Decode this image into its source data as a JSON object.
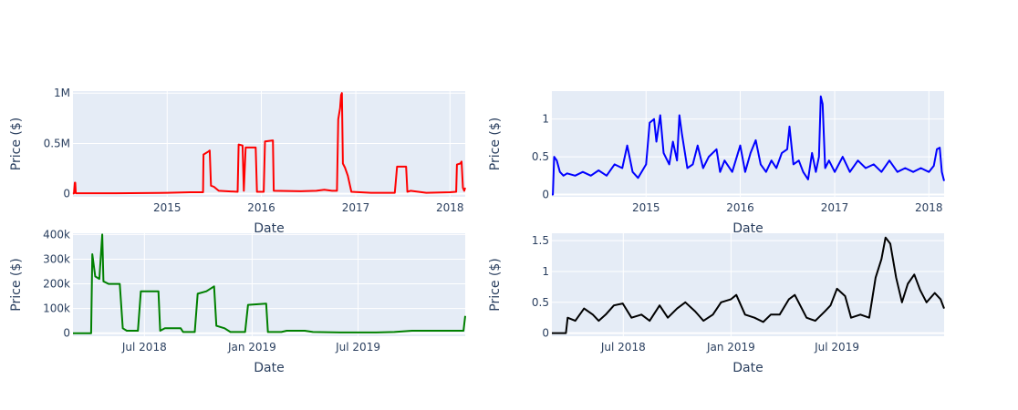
{
  "chart_data": [
    {
      "type": "line",
      "color": "#ff0000",
      "xlabel": "Date",
      "ylabel": "Price ($)",
      "x_range": [
        "2014-01-01",
        "2018-03-01"
      ],
      "ylim": [
        -30000,
        1020000
      ],
      "x_ticks": [
        {
          "value": "2015-01-01",
          "label": "2015"
        },
        {
          "value": "2016-01-01",
          "label": "2016"
        },
        {
          "value": "2017-01-01",
          "label": "2017"
        },
        {
          "value": "2018-01-01",
          "label": "2018"
        }
      ],
      "y_ticks": [
        {
          "value": 0,
          "label": "0"
        },
        {
          "value": 500000,
          "label": "0.5M"
        },
        {
          "value": 1000000,
          "label": "1M"
        }
      ],
      "points": [
        [
          "2014-01-01",
          0
        ],
        [
          "2014-01-05",
          5000
        ],
        [
          "2014-01-08",
          110000
        ],
        [
          "2014-01-10",
          110000
        ],
        [
          "2014-01-12",
          5000
        ],
        [
          "2014-06-01",
          5000
        ],
        [
          "2014-12-01",
          8000
        ],
        [
          "2015-01-01",
          10000
        ],
        [
          "2015-04-01",
          15000
        ],
        [
          "2015-05-20",
          15000
        ],
        [
          "2015-05-22",
          390000
        ],
        [
          "2015-06-10",
          420000
        ],
        [
          "2015-06-15",
          430000
        ],
        [
          "2015-06-20",
          80000
        ],
        [
          "2015-07-01",
          70000
        ],
        [
          "2015-07-20",
          30000
        ],
        [
          "2015-10-01",
          20000
        ],
        [
          "2015-10-05",
          490000
        ],
        [
          "2015-10-20",
          480000
        ],
        [
          "2015-10-25",
          30000
        ],
        [
          "2015-11-01",
          460000
        ],
        [
          "2015-12-10",
          460000
        ],
        [
          "2015-12-15",
          20000
        ],
        [
          "2016-01-10",
          20000
        ],
        [
          "2016-01-15",
          520000
        ],
        [
          "2016-02-15",
          530000
        ],
        [
          "2016-02-18",
          30000
        ],
        [
          "2016-06-01",
          25000
        ],
        [
          "2016-08-01",
          30000
        ],
        [
          "2016-09-01",
          40000
        ],
        [
          "2016-10-01",
          30000
        ],
        [
          "2016-10-20",
          30000
        ],
        [
          "2016-10-25",
          740000
        ],
        [
          "2016-11-01",
          850000
        ],
        [
          "2016-11-05",
          980000
        ],
        [
          "2016-11-08",
          1000000
        ],
        [
          "2016-11-12",
          300000
        ],
        [
          "2016-11-20",
          260000
        ],
        [
          "2016-12-01",
          180000
        ],
        [
          "2016-12-15",
          20000
        ],
        [
          "2017-03-01",
          10000
        ],
        [
          "2017-06-01",
          10000
        ],
        [
          "2017-06-10",
          270000
        ],
        [
          "2017-07-15",
          270000
        ],
        [
          "2017-07-20",
          20000
        ],
        [
          "2017-08-01",
          30000
        ],
        [
          "2017-10-01",
          10000
        ],
        [
          "2018-01-01",
          15000
        ],
        [
          "2018-01-25",
          20000
        ],
        [
          "2018-01-28",
          290000
        ],
        [
          "2018-02-10",
          300000
        ],
        [
          "2018-02-15",
          320000
        ],
        [
          "2018-02-20",
          60000
        ],
        [
          "2018-02-25",
          30000
        ],
        [
          "2018-03-01",
          60000
        ]
      ]
    },
    {
      "type": "line",
      "color": "#0000ff",
      "xlabel": "Date",
      "ylabel": "Price ($)",
      "x_range": [
        "2014-01-01",
        "2018-03-01"
      ],
      "ylim": [
        -0.03,
        1.37
      ],
      "x_ticks": [
        {
          "value": "2015-01-01",
          "label": "2015"
        },
        {
          "value": "2016-01-01",
          "label": "2016"
        },
        {
          "value": "2017-01-01",
          "label": "2017"
        },
        {
          "value": "2018-01-01",
          "label": "2018"
        }
      ],
      "y_ticks": [
        {
          "value": 0,
          "label": "0"
        },
        {
          "value": 0.5,
          "label": "0.5"
        },
        {
          "value": 1,
          "label": "1"
        }
      ],
      "points": [
        [
          "2014-01-01",
          0
        ],
        [
          "2014-01-05",
          0
        ],
        [
          "2014-01-10",
          0.5
        ],
        [
          "2014-01-20",
          0.45
        ],
        [
          "2014-02-01",
          0.3
        ],
        [
          "2014-02-15",
          0.25
        ],
        [
          "2014-03-01",
          0.28
        ],
        [
          "2014-04-01",
          0.25
        ],
        [
          "2014-05-01",
          0.3
        ],
        [
          "2014-06-01",
          0.25
        ],
        [
          "2014-07-01",
          0.32
        ],
        [
          "2014-08-01",
          0.25
        ],
        [
          "2014-09-01",
          0.4
        ],
        [
          "2014-10-01",
          0.35
        ],
        [
          "2014-10-20",
          0.65
        ],
        [
          "2014-11-10",
          0.3
        ],
        [
          "2014-12-01",
          0.22
        ],
        [
          "2015-01-01",
          0.4
        ],
        [
          "2015-01-15",
          0.95
        ],
        [
          "2015-02-01",
          1.0
        ],
        [
          "2015-02-10",
          0.7
        ],
        [
          "2015-02-25",
          1.05
        ],
        [
          "2015-03-10",
          0.55
        ],
        [
          "2015-04-01",
          0.4
        ],
        [
          "2015-04-15",
          0.7
        ],
        [
          "2015-05-01",
          0.45
        ],
        [
          "2015-05-10",
          1.05
        ],
        [
          "2015-05-20",
          0.8
        ],
        [
          "2015-06-10",
          0.35
        ],
        [
          "2015-07-01",
          0.4
        ],
        [
          "2015-07-20",
          0.65
        ],
        [
          "2015-08-10",
          0.35
        ],
        [
          "2015-09-01",
          0.5
        ],
        [
          "2015-10-01",
          0.6
        ],
        [
          "2015-10-15",
          0.3
        ],
        [
          "2015-11-01",
          0.45
        ],
        [
          "2015-12-01",
          0.3
        ],
        [
          "2016-01-01",
          0.65
        ],
        [
          "2016-01-20",
          0.3
        ],
        [
          "2016-02-10",
          0.55
        ],
        [
          "2016-03-01",
          0.72
        ],
        [
          "2016-03-20",
          0.4
        ],
        [
          "2016-04-10",
          0.3
        ],
        [
          "2016-05-01",
          0.45
        ],
        [
          "2016-05-20",
          0.35
        ],
        [
          "2016-06-10",
          0.55
        ],
        [
          "2016-07-01",
          0.6
        ],
        [
          "2016-07-10",
          0.9
        ],
        [
          "2016-07-25",
          0.4
        ],
        [
          "2016-08-15",
          0.45
        ],
        [
          "2016-09-01",
          0.3
        ],
        [
          "2016-09-20",
          0.2
        ],
        [
          "2016-10-05",
          0.55
        ],
        [
          "2016-10-20",
          0.3
        ],
        [
          "2016-11-01",
          0.5
        ],
        [
          "2016-11-08",
          1.3
        ],
        [
          "2016-11-15",
          1.2
        ],
        [
          "2016-11-25",
          0.35
        ],
        [
          "2016-12-10",
          0.45
        ],
        [
          "2017-01-01",
          0.3
        ],
        [
          "2017-02-01",
          0.5
        ],
        [
          "2017-03-01",
          0.3
        ],
        [
          "2017-04-01",
          0.45
        ],
        [
          "2017-05-01",
          0.35
        ],
        [
          "2017-06-01",
          0.4
        ],
        [
          "2017-07-01",
          0.3
        ],
        [
          "2017-08-01",
          0.45
        ],
        [
          "2017-09-01",
          0.3
        ],
        [
          "2017-10-01",
          0.35
        ],
        [
          "2017-11-01",
          0.3
        ],
        [
          "2017-12-01",
          0.35
        ],
        [
          "2018-01-01",
          0.3
        ],
        [
          "2018-01-20",
          0.38
        ],
        [
          "2018-02-01",
          0.6
        ],
        [
          "2018-02-12",
          0.62
        ],
        [
          "2018-02-20",
          0.3
        ],
        [
          "2018-03-01",
          0.18
        ]
      ]
    },
    {
      "type": "line",
      "color": "#008000",
      "xlabel": "Date",
      "ylabel": "Price ($)",
      "x_range": [
        "2018-03-01",
        "2019-12-31"
      ],
      "ylim": [
        -12000,
        405000
      ],
      "x_ticks": [
        {
          "value": "2018-07-01",
          "label": "Jul 2018"
        },
        {
          "value": "2019-01-01",
          "label": "Jan 2019"
        },
        {
          "value": "2019-07-01",
          "label": "Jul 2019"
        }
      ],
      "y_ticks": [
        {
          "value": 0,
          "label": "0"
        },
        {
          "value": 100000,
          "label": "100k"
        },
        {
          "value": 200000,
          "label": "200k"
        },
        {
          "value": 300000,
          "label": "300k"
        },
        {
          "value": 400000,
          "label": "400k"
        }
      ],
      "points": [
        [
          "2018-03-01",
          0
        ],
        [
          "2018-04-01",
          0
        ],
        [
          "2018-04-03",
          320000
        ],
        [
          "2018-04-08",
          230000
        ],
        [
          "2018-04-15",
          220000
        ],
        [
          "2018-04-20",
          400000
        ],
        [
          "2018-04-22",
          210000
        ],
        [
          "2018-05-01",
          200000
        ],
        [
          "2018-05-20",
          200000
        ],
        [
          "2018-05-25",
          20000
        ],
        [
          "2018-06-01",
          10000
        ],
        [
          "2018-06-20",
          10000
        ],
        [
          "2018-06-25",
          170000
        ],
        [
          "2018-07-25",
          170000
        ],
        [
          "2018-07-28",
          10000
        ],
        [
          "2018-08-05",
          20000
        ],
        [
          "2018-09-01",
          20000
        ],
        [
          "2018-09-05",
          5000
        ],
        [
          "2018-09-25",
          5000
        ],
        [
          "2018-09-30",
          160000
        ],
        [
          "2018-10-15",
          170000
        ],
        [
          "2018-10-28",
          190000
        ],
        [
          "2018-11-01",
          30000
        ],
        [
          "2018-11-15",
          20000
        ],
        [
          "2018-11-25",
          5000
        ],
        [
          "2018-12-20",
          5000
        ],
        [
          "2018-12-25",
          115000
        ],
        [
          "2019-01-25",
          120000
        ],
        [
          "2019-01-28",
          5000
        ],
        [
          "2019-02-20",
          5000
        ],
        [
          "2019-03-01",
          10000
        ],
        [
          "2019-04-01",
          10000
        ],
        [
          "2019-04-15",
          5000
        ],
        [
          "2019-06-01",
          3000
        ],
        [
          "2019-08-01",
          3000
        ],
        [
          "2019-09-01",
          5000
        ],
        [
          "2019-10-01",
          10000
        ],
        [
          "2019-12-28",
          10000
        ],
        [
          "2019-12-31",
          70000
        ]
      ]
    },
    {
      "type": "line",
      "color": "#000000",
      "xlabel": "Date",
      "ylabel": "Price ($)",
      "x_range": [
        "2018-03-01",
        "2019-12-31"
      ],
      "ylim": [
        -0.05,
        1.62
      ],
      "x_ticks": [
        {
          "value": "2018-07-01",
          "label": "Jul 2018"
        },
        {
          "value": "2019-01-01",
          "label": "Jan 2019"
        },
        {
          "value": "2019-07-01",
          "label": "Jul 2019"
        }
      ],
      "y_ticks": [
        {
          "value": 0,
          "label": "0"
        },
        {
          "value": 0.5,
          "label": "0.5"
        },
        {
          "value": 1,
          "label": "1"
        },
        {
          "value": 1.5,
          "label": "1.5"
        }
      ],
      "points": [
        [
          "2018-03-01",
          0
        ],
        [
          "2018-03-25",
          0
        ],
        [
          "2018-03-28",
          0.25
        ],
        [
          "2018-04-10",
          0.2
        ],
        [
          "2018-04-25",
          0.4
        ],
        [
          "2018-05-10",
          0.3
        ],
        [
          "2018-05-20",
          0.2
        ],
        [
          "2018-06-01",
          0.3
        ],
        [
          "2018-06-15",
          0.45
        ],
        [
          "2018-06-30",
          0.48
        ],
        [
          "2018-07-15",
          0.25
        ],
        [
          "2018-08-01",
          0.3
        ],
        [
          "2018-08-15",
          0.2
        ],
        [
          "2018-09-01",
          0.45
        ],
        [
          "2018-09-15",
          0.25
        ],
        [
          "2018-10-01",
          0.4
        ],
        [
          "2018-10-15",
          0.5
        ],
        [
          "2018-11-01",
          0.35
        ],
        [
          "2018-11-15",
          0.2
        ],
        [
          "2018-12-01",
          0.3
        ],
        [
          "2018-12-15",
          0.5
        ],
        [
          "2019-01-01",
          0.55
        ],
        [
          "2019-01-10",
          0.62
        ],
        [
          "2019-01-25",
          0.3
        ],
        [
          "2019-02-10",
          0.25
        ],
        [
          "2019-02-25",
          0.18
        ],
        [
          "2019-03-10",
          0.3
        ],
        [
          "2019-03-25",
          0.3
        ],
        [
          "2019-04-10",
          0.55
        ],
        [
          "2019-04-20",
          0.62
        ],
        [
          "2019-05-10",
          0.25
        ],
        [
          "2019-05-25",
          0.2
        ],
        [
          "2019-06-10",
          0.35
        ],
        [
          "2019-06-20",
          0.45
        ],
        [
          "2019-07-01",
          0.72
        ],
        [
          "2019-07-15",
          0.6
        ],
        [
          "2019-07-25",
          0.25
        ],
        [
          "2019-08-10",
          0.3
        ],
        [
          "2019-08-25",
          0.25
        ],
        [
          "2019-09-05",
          0.9
        ],
        [
          "2019-09-15",
          1.2
        ],
        [
          "2019-09-22",
          1.55
        ],
        [
          "2019-09-30",
          1.45
        ],
        [
          "2019-10-10",
          0.9
        ],
        [
          "2019-10-20",
          0.5
        ],
        [
          "2019-10-30",
          0.8
        ],
        [
          "2019-11-10",
          0.95
        ],
        [
          "2019-11-20",
          0.7
        ],
        [
          "2019-12-01",
          0.5
        ],
        [
          "2019-12-15",
          0.65
        ],
        [
          "2019-12-25",
          0.55
        ],
        [
          "2019-12-31",
          0.4
        ]
      ]
    }
  ]
}
